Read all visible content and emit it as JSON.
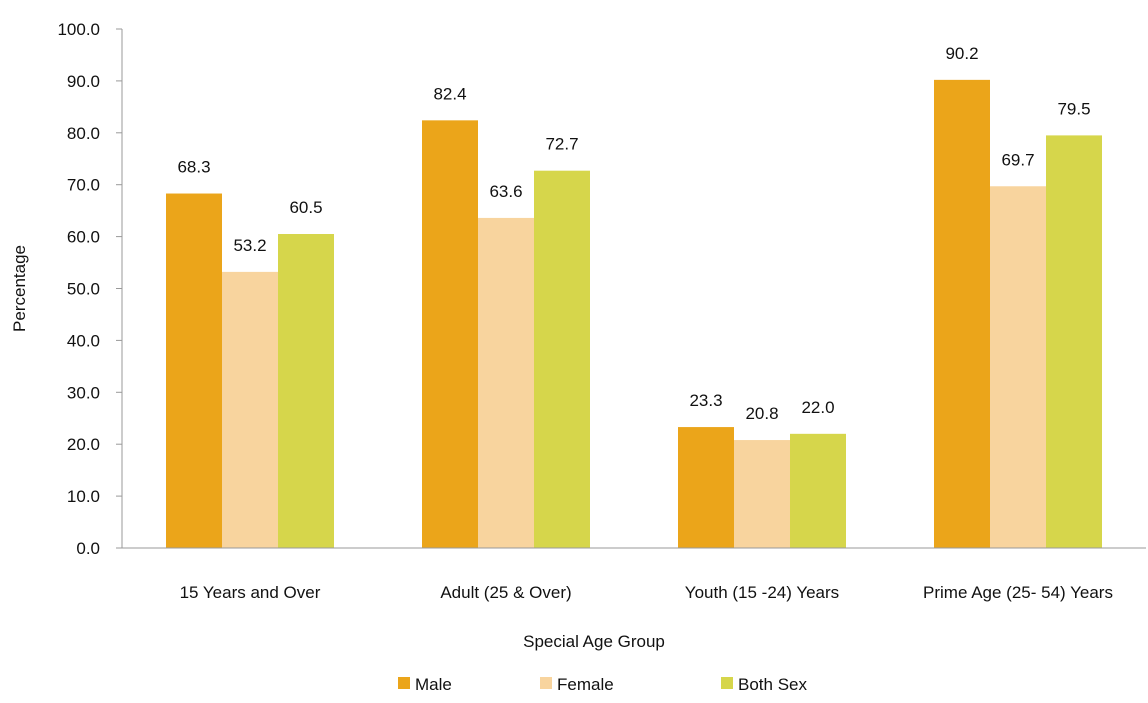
{
  "chart_data": {
    "type": "bar",
    "categories": [
      "15 Years and Over",
      "Adult (25 & Over)",
      "Youth (15 -24) Years",
      "Prime Age (25- 54)  Years"
    ],
    "series": [
      {
        "name": "Male",
        "values": [
          68.3,
          82.4,
          23.3,
          90.2
        ],
        "color": "#EBA51A"
      },
      {
        "name": "Female",
        "values": [
          53.2,
          63.6,
          20.8,
          69.7
        ],
        "color": "#F8D49E"
      },
      {
        "name": "Both Sex",
        "values": [
          60.5,
          72.7,
          22.0,
          79.5
        ],
        "color": "#D6D64B"
      }
    ],
    "xlabel": "Special Age Group",
    "ylabel": "Percentage",
    "ylim": [
      0,
      100
    ],
    "yticks": [
      "0.0",
      "10.0",
      "20.0",
      "30.0",
      "40.0",
      "50.0",
      "60.0",
      "70.0",
      "80.0",
      "90.0",
      "100.0"
    ],
    "grid": false,
    "legend_position": "bottom"
  }
}
